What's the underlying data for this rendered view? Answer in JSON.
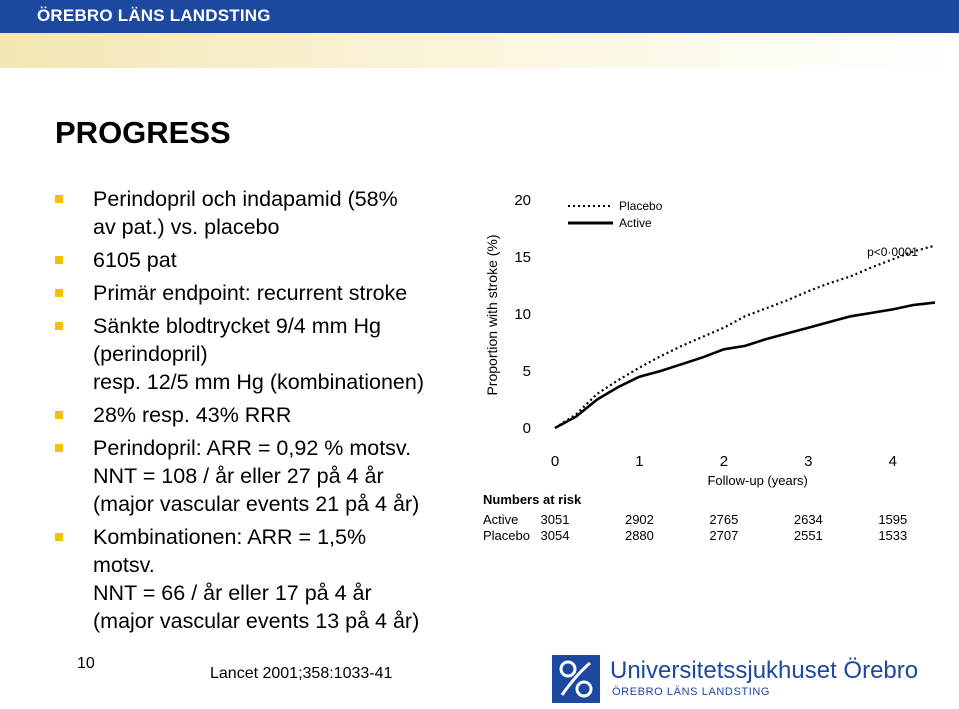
{
  "header": {
    "org": "ÖREBRO LÄNS LANDSTING"
  },
  "title": "PROGRESS",
  "bullets": [
    {
      "lines": [
        "Perindopril och indapamid (58%",
        "av pat.) vs. placebo"
      ]
    },
    {
      "lines": [
        "6105 pat"
      ]
    },
    {
      "lines": [
        "Primär endpoint: recurrent stroke"
      ]
    },
    {
      "lines": [
        "Sänkte blodtrycket 9/4 mm Hg",
        "(perindopril)",
        "resp. 12/5 mm Hg (kombinationen)"
      ]
    },
    {
      "lines": [
        "28% resp. 43% RRR"
      ]
    },
    {
      "lines": [
        "Perindopril: ARR = 0,92 % motsv.",
        "NNT = 108 / år eller 27 på 4 år",
        "(major vascular events 21 på 4 år)"
      ]
    },
    {
      "lines": [
        "Kombinationen: ARR = 1,5%",
        "motsv.",
        "NNT = 66 / år eller 17 på 4 år",
        "(major vascular events 13 på 4 år)"
      ]
    }
  ],
  "footer": {
    "page_number": "10",
    "citation": "Lancet 2001;358:1033-41",
    "logo_name": "Universitetssjukhuset Örebro",
    "logo_sub": "ÖREBRO LÄNS LANDSTING"
  },
  "colors": {
    "header_bar": "#1d48a0",
    "bullet": "#f2c200",
    "logo": "#1d48a0"
  },
  "chart_data": {
    "type": "line",
    "xlabel": "Follow-up (years)",
    "ylabel": "Proportion with stroke (%)",
    "xlim": [
      0,
      4.5
    ],
    "ylim": [
      0,
      20
    ],
    "x_ticks": [
      "0",
      "1",
      "2",
      "3",
      "4"
    ],
    "y_ticks": [
      "0",
      "5",
      "10",
      "15",
      "20"
    ],
    "annotation": "p<0·0001",
    "legend_position": "top-left",
    "series": [
      {
        "name": "Placebo",
        "style": "dotted",
        "points": [
          [
            0,
            0
          ],
          [
            0.25,
            1.2
          ],
          [
            0.5,
            3.0
          ],
          [
            0.75,
            4.2
          ],
          [
            1,
            5.3
          ],
          [
            1.25,
            6.3
          ],
          [
            1.5,
            7.2
          ],
          [
            1.75,
            8.0
          ],
          [
            2,
            8.8
          ],
          [
            2.25,
            9.8
          ],
          [
            2.5,
            10.5
          ],
          [
            2.75,
            11.2
          ],
          [
            3,
            12.0
          ],
          [
            3.25,
            12.7
          ],
          [
            3.5,
            13.3
          ],
          [
            3.75,
            14.1
          ],
          [
            4,
            14.8
          ],
          [
            4.25,
            15.5
          ],
          [
            4.5,
            16.0
          ]
        ]
      },
      {
        "name": "Active",
        "style": "solid",
        "points": [
          [
            0,
            0
          ],
          [
            0.25,
            1.0
          ],
          [
            0.5,
            2.5
          ],
          [
            0.75,
            3.6
          ],
          [
            1,
            4.5
          ],
          [
            1.25,
            5.0
          ],
          [
            1.5,
            5.6
          ],
          [
            1.75,
            6.2
          ],
          [
            2,
            6.9
          ],
          [
            2.25,
            7.2
          ],
          [
            2.5,
            7.8
          ],
          [
            2.75,
            8.3
          ],
          [
            3,
            8.8
          ],
          [
            3.25,
            9.3
          ],
          [
            3.5,
            9.8
          ],
          [
            3.75,
            10.1
          ],
          [
            4,
            10.4
          ],
          [
            4.25,
            10.8
          ],
          [
            4.5,
            11.0
          ]
        ]
      }
    ],
    "risk_table": {
      "heading": "Numbers at risk",
      "rows": [
        {
          "label": "Active",
          "values": [
            "3051",
            "2902",
            "2765",
            "2634",
            "1595"
          ]
        },
        {
          "label": "Placebo",
          "values": [
            "3054",
            "2880",
            "2707",
            "2551",
            "1533"
          ]
        }
      ]
    }
  }
}
